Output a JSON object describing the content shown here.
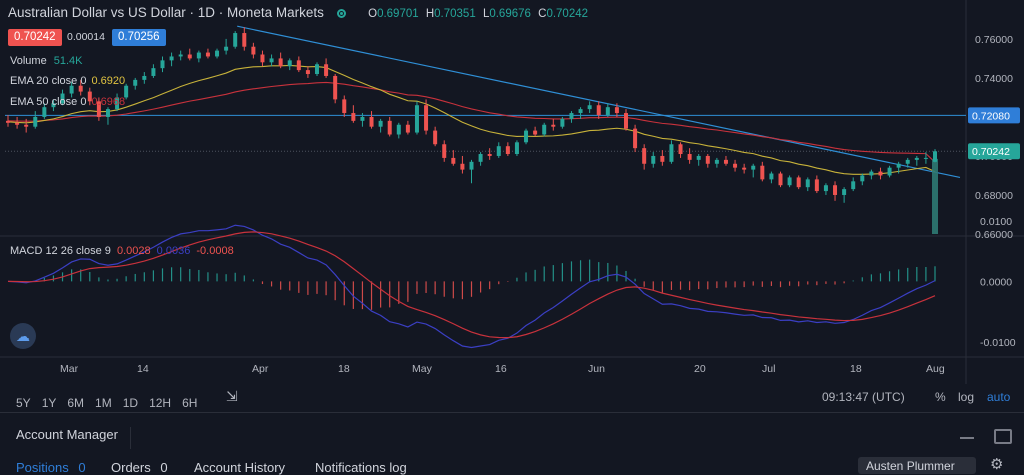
{
  "header": {
    "symbol": "Australian Dollar vs US Dollar · 1D · Moneta Markets",
    "o_label": "O",
    "o": "0.69701",
    "h_label": "H",
    "h": "0.70351",
    "l_label": "L",
    "l": "0.69676",
    "c_label": "C",
    "c": "0.70242"
  },
  "trade": {
    "sell": "0.70242",
    "spread": "0.00014",
    "buy": "0.70256"
  },
  "indicators": {
    "volume_label": "Volume",
    "volume_value": "51.4K",
    "ema20_label": "EMA 20 close 0",
    "ema20_value": "0.6920",
    "ema50_label": "EMA 50 close 0",
    "ema50_value": "0.6968",
    "macd_label": "MACD 12 26 close 9",
    "macd_value": "0.0028",
    "signal_value": "0.0036",
    "hist_value": "-0.0008"
  },
  "chart_data": {
    "type": "candlestick",
    "price_axis_ticks": [
      "0.76000",
      "0.74000",
      "0.72000",
      "0.70000",
      "0.68000",
      "0.66000"
    ],
    "price_ylim": [
      0.66,
      0.762
    ],
    "price_labels": {
      "horizontal_line": "0.72080",
      "last": "0.70242"
    },
    "macd_axis_ticks": [
      "0.0100",
      "0.0000",
      "-0.0100"
    ],
    "macd_ylim": [
      -0.0125,
      0.0075
    ],
    "x_tick_labels": [
      "Mar",
      "14",
      "Apr",
      "18",
      "May",
      "16",
      "Jun",
      "20",
      "Jul",
      "18",
      "Aug"
    ],
    "candles": [
      [
        0.718,
        0.721,
        0.715,
        0.717
      ],
      [
        0.717,
        0.72,
        0.714,
        0.716
      ],
      [
        0.716,
        0.719,
        0.712,
        0.715
      ],
      [
        0.715,
        0.723,
        0.714,
        0.72
      ],
      [
        0.72,
        0.727,
        0.719,
        0.725
      ],
      [
        0.725,
        0.729,
        0.723,
        0.727
      ],
      [
        0.727,
        0.734,
        0.726,
        0.732
      ],
      [
        0.732,
        0.738,
        0.73,
        0.736
      ],
      [
        0.736,
        0.739,
        0.731,
        0.733
      ],
      [
        0.733,
        0.735,
        0.726,
        0.728
      ],
      [
        0.728,
        0.73,
        0.718,
        0.72
      ],
      [
        0.72,
        0.725,
        0.716,
        0.724
      ],
      [
        0.724,
        0.732,
        0.723,
        0.73
      ],
      [
        0.73,
        0.737,
        0.729,
        0.736
      ],
      [
        0.736,
        0.74,
        0.734,
        0.739
      ],
      [
        0.739,
        0.743,
        0.737,
        0.741
      ],
      [
        0.741,
        0.747,
        0.74,
        0.745
      ],
      [
        0.745,
        0.751,
        0.743,
        0.749
      ],
      [
        0.749,
        0.753,
        0.746,
        0.751
      ],
      [
        0.751,
        0.754,
        0.749,
        0.752
      ],
      [
        0.752,
        0.755,
        0.749,
        0.75
      ],
      [
        0.75,
        0.754,
        0.748,
        0.753
      ],
      [
        0.753,
        0.755,
        0.75,
        0.751
      ],
      [
        0.751,
        0.755,
        0.75,
        0.754
      ],
      [
        0.754,
        0.76,
        0.752,
        0.756
      ],
      [
        0.756,
        0.764,
        0.755,
        0.763
      ],
      [
        0.763,
        0.766,
        0.754,
        0.756
      ],
      [
        0.756,
        0.758,
        0.75,
        0.752
      ],
      [
        0.752,
        0.754,
        0.746,
        0.748
      ],
      [
        0.748,
        0.752,
        0.746,
        0.75
      ],
      [
        0.75,
        0.753,
        0.745,
        0.746
      ],
      [
        0.746,
        0.75,
        0.744,
        0.749
      ],
      [
        0.749,
        0.751,
        0.743,
        0.744
      ],
      [
        0.744,
        0.746,
        0.74,
        0.742
      ],
      [
        0.742,
        0.748,
        0.741,
        0.747
      ],
      [
        0.747,
        0.75,
        0.74,
        0.741
      ],
      [
        0.741,
        0.742,
        0.727,
        0.729
      ],
      [
        0.729,
        0.731,
        0.72,
        0.722
      ],
      [
        0.722,
        0.726,
        0.717,
        0.718
      ],
      [
        0.718,
        0.722,
        0.715,
        0.72
      ],
      [
        0.72,
        0.723,
        0.714,
        0.715
      ],
      [
        0.715,
        0.719,
        0.712,
        0.718
      ],
      [
        0.718,
        0.72,
        0.71,
        0.711
      ],
      [
        0.711,
        0.717,
        0.709,
        0.716
      ],
      [
        0.716,
        0.718,
        0.711,
        0.712
      ],
      [
        0.712,
        0.728,
        0.711,
        0.726
      ],
      [
        0.726,
        0.729,
        0.711,
        0.713
      ],
      [
        0.713,
        0.715,
        0.705,
        0.706
      ],
      [
        0.706,
        0.708,
        0.697,
        0.699
      ],
      [
        0.699,
        0.703,
        0.695,
        0.696
      ],
      [
        0.696,
        0.7,
        0.691,
        0.693
      ],
      [
        0.693,
        0.698,
        0.686,
        0.697
      ],
      [
        0.697,
        0.702,
        0.695,
        0.701
      ],
      [
        0.701,
        0.704,
        0.698,
        0.7
      ],
      [
        0.7,
        0.707,
        0.699,
        0.705
      ],
      [
        0.705,
        0.707,
        0.7,
        0.701
      ],
      [
        0.701,
        0.708,
        0.7,
        0.707
      ],
      [
        0.707,
        0.714,
        0.706,
        0.713
      ],
      [
        0.713,
        0.715,
        0.71,
        0.711
      ],
      [
        0.711,
        0.717,
        0.71,
        0.716
      ],
      [
        0.716,
        0.719,
        0.713,
        0.715
      ],
      [
        0.715,
        0.72,
        0.714,
        0.719
      ],
      [
        0.719,
        0.723,
        0.717,
        0.722
      ],
      [
        0.722,
        0.725,
        0.719,
        0.724
      ],
      [
        0.724,
        0.728,
        0.722,
        0.726
      ],
      [
        0.726,
        0.728,
        0.719,
        0.721
      ],
      [
        0.721,
        0.727,
        0.72,
        0.725
      ],
      [
        0.725,
        0.727,
        0.72,
        0.722
      ],
      [
        0.722,
        0.724,
        0.713,
        0.714
      ],
      [
        0.714,
        0.716,
        0.702,
        0.704
      ],
      [
        0.704,
        0.706,
        0.693,
        0.696
      ],
      [
        0.696,
        0.702,
        0.694,
        0.7
      ],
      [
        0.7,
        0.703,
        0.695,
        0.697
      ],
      [
        0.697,
        0.708,
        0.696,
        0.706
      ],
      [
        0.706,
        0.707,
        0.699,
        0.701
      ],
      [
        0.701,
        0.704,
        0.696,
        0.698
      ],
      [
        0.698,
        0.701,
        0.695,
        0.7
      ],
      [
        0.7,
        0.701,
        0.694,
        0.696
      ],
      [
        0.696,
        0.699,
        0.694,
        0.698
      ],
      [
        0.698,
        0.7,
        0.695,
        0.696
      ],
      [
        0.696,
        0.698,
        0.692,
        0.694
      ],
      [
        0.694,
        0.696,
        0.691,
        0.693
      ],
      [
        0.693,
        0.696,
        0.689,
        0.695
      ],
      [
        0.695,
        0.697,
        0.687,
        0.688
      ],
      [
        0.688,
        0.692,
        0.686,
        0.691
      ],
      [
        0.691,
        0.692,
        0.684,
        0.685
      ],
      [
        0.685,
        0.69,
        0.684,
        0.689
      ],
      [
        0.689,
        0.69,
        0.683,
        0.684
      ],
      [
        0.684,
        0.689,
        0.682,
        0.688
      ],
      [
        0.688,
        0.69,
        0.681,
        0.682
      ],
      [
        0.682,
        0.686,
        0.68,
        0.685
      ],
      [
        0.685,
        0.687,
        0.677,
        0.68
      ],
      [
        0.68,
        0.684,
        0.676,
        0.683
      ],
      [
        0.683,
        0.689,
        0.682,
        0.687
      ],
      [
        0.687,
        0.691,
        0.685,
        0.69
      ],
      [
        0.69,
        0.693,
        0.688,
        0.692
      ],
      [
        0.692,
        0.694,
        0.688,
        0.69
      ],
      [
        0.69,
        0.695,
        0.689,
        0.694
      ],
      [
        0.694,
        0.697,
        0.691,
        0.696
      ],
      [
        0.696,
        0.699,
        0.694,
        0.698
      ],
      [
        0.698,
        0.7,
        0.695,
        0.699
      ],
      [
        0.699,
        0.702,
        0.696,
        0.699
      ],
      [
        0.697,
        0.7035,
        0.6968,
        0.7024
      ]
    ],
    "ema20": [
      0.7175,
      0.7172,
      0.717,
      0.7174,
      0.7182,
      0.719,
      0.7202,
      0.7217,
      0.7227,
      0.7232,
      0.7227,
      0.7228,
      0.7236,
      0.725,
      0.7266,
      0.7283,
      0.7299,
      0.7318,
      0.7337,
      0.7356,
      0.7372,
      0.7386,
      0.7398,
      0.7411,
      0.7425,
      0.7444,
      0.7451,
      0.7457,
      0.7458,
      0.7462,
      0.7462,
      0.7464,
      0.7461,
      0.7457,
      0.7458,
      0.7453,
      0.7433,
      0.7413,
      0.7392,
      0.7374,
      0.7355,
      0.7338,
      0.7316,
      0.73,
      0.7283,
      0.7281,
      0.7267,
      0.7246,
      0.7222,
      0.7197,
      0.7173,
      0.7154,
      0.7137,
      0.7124,
      0.7115,
      0.7105,
      0.71,
      0.7101,
      0.71,
      0.7102,
      0.7103,
      0.7107,
      0.7113,
      0.7121,
      0.713,
      0.7132,
      0.7138,
      0.7142,
      0.7137,
      0.7127,
      0.7111,
      0.7101,
      0.709,
      0.7086,
      0.7078,
      0.7068,
      0.7062,
      0.7052,
      0.7045,
      0.7037,
      0.7028,
      0.7018,
      0.7012,
      0.6999,
      0.699,
      0.6976,
      0.697,
      0.6958,
      0.695,
      0.6938,
      0.6929,
      0.6917,
      0.6909,
      0.6906,
      0.6906,
      0.6907,
      0.6909,
      0.6914,
      0.6921,
      0.6928,
      0.6935,
      0.6941,
      0.692
    ],
    "ema50": [
      0.718,
      0.7179,
      0.7178,
      0.7179,
      0.7182,
      0.7185,
      0.719,
      0.7197,
      0.7202,
      0.7205,
      0.7204,
      0.7205,
      0.7209,
      0.7215,
      0.7223,
      0.7231,
      0.724,
      0.725,
      0.7261,
      0.7271,
      0.7281,
      0.7289,
      0.7298,
      0.7307,
      0.7316,
      0.7328,
      0.7337,
      0.7344,
      0.735,
      0.7356,
      0.7361,
      0.7366,
      0.7369,
      0.7371,
      0.7375,
      0.7377,
      0.7373,
      0.7368,
      0.736,
      0.7354,
      0.7346,
      0.7339,
      0.7329,
      0.7322,
      0.7313,
      0.7311,
      0.7303,
      0.7293,
      0.728,
      0.7267,
      0.7253,
      0.7241,
      0.7231,
      0.7221,
      0.7214,
      0.7206,
      0.72,
      0.7197,
      0.7193,
      0.7192,
      0.719,
      0.719,
      0.7191,
      0.7193,
      0.7196,
      0.7196,
      0.7198,
      0.7199,
      0.7197,
      0.7191,
      0.7182,
      0.7174,
      0.7167,
      0.7163,
      0.7157,
      0.715,
      0.7145,
      0.7138,
      0.7133,
      0.7126,
      0.712,
      0.7113,
      0.7107,
      0.7099,
      0.7093,
      0.7084,
      0.7079,
      0.707,
      0.7064,
      0.7056,
      0.7049,
      0.704,
      0.7033,
      0.7028,
      0.7024,
      0.7021,
      0.7018,
      0.7016,
      0.7015,
      0.7014,
      0.7013,
      0.7012,
      0.6968
    ]
  },
  "timeframes": [
    "5Y",
    "1Y",
    "6M",
    "1M",
    "1D",
    "12H",
    "6H"
  ],
  "bottom_right": {
    "time": "09:13:47 (UTC)",
    "percent": "%",
    "log": "log",
    "auto": "auto"
  },
  "panel": {
    "account_manager": "Account Manager",
    "tabs": [
      {
        "label": "Positions",
        "count": "0"
      },
      {
        "label": "Orders",
        "count": "0"
      }
    ],
    "account_history": "Account History",
    "notifications_log": "Notifications log",
    "user": "Austen Plummer"
  },
  "colors": {
    "bull": "#26a69a",
    "bear": "#ef5350",
    "ema20": "#c7b23a",
    "ema50": "#c8323c",
    "trend": "#2f8fd6",
    "macd": "#3b3fc4",
    "signal": "#c8323c"
  }
}
